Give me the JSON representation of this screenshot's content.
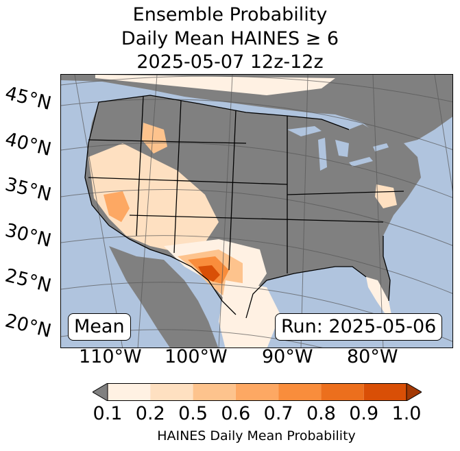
{
  "title": {
    "line1": "Ensemble Probability",
    "line2": "Daily Mean HAINES ≥ 6",
    "line3": "2025-05-07 12z-12z"
  },
  "map": {
    "projection": "lambert-conformal",
    "region": "Contiguous United States",
    "lat_labels": [
      "45°N",
      "40°N",
      "35°N",
      "30°N",
      "25°N",
      "20°N"
    ],
    "lon_labels": [
      "110°W",
      "100°W",
      "90°W",
      "80°W"
    ],
    "colors": {
      "ocean": "#b0c4de",
      "land_below_threshold": "#808080",
      "borders": "#000000",
      "gridlines": "#555555"
    },
    "mean_label": "Mean",
    "run_label": "Run: 2025-05-06"
  },
  "colorbar": {
    "ticks": [
      "0.1",
      "0.2",
      "0.5",
      "0.6",
      "0.7",
      "0.8",
      "0.9",
      "1.0"
    ],
    "bins": [
      {
        "from": 0.1,
        "to": 0.2,
        "color": "#fff1e3"
      },
      {
        "from": 0.2,
        "to": 0.5,
        "color": "#fee0c1"
      },
      {
        "from": 0.5,
        "to": 0.6,
        "color": "#fdc38d"
      },
      {
        "from": 0.6,
        "to": 0.7,
        "color": "#fda863"
      },
      {
        "from": 0.7,
        "to": 0.8,
        "color": "#f98d3c"
      },
      {
        "from": 0.8,
        "to": 0.9,
        "color": "#ec6f1d"
      },
      {
        "from": 0.9,
        "to": 1.0,
        "color": "#d94f06"
      }
    ],
    "under_color": "#808080",
    "over_color": "#a33904",
    "label": "HAINES Daily Mean Probability"
  }
}
